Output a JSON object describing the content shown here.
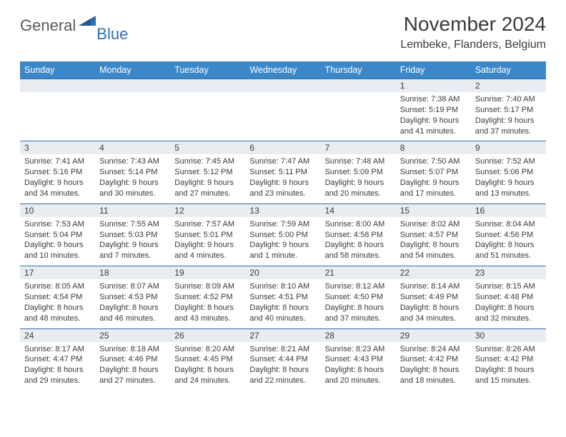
{
  "brand": {
    "part1": "General",
    "part2": "Blue"
  },
  "title": "November 2024",
  "location": "Lembeke, Flanders, Belgium",
  "colors": {
    "header_bg": "#3b87c8",
    "header_text": "#ffffff",
    "daynum_bg": "#e9edf1",
    "rule": "#2f6fb0",
    "body_text": "#3a3a3a",
    "logo_gray": "#5a5a5a",
    "logo_blue": "#2f6fb0"
  },
  "typography": {
    "title_fontsize": 28,
    "location_fontsize": 16,
    "dayheader_fontsize": 12.5,
    "daynum_fontsize": 12,
    "cell_fontsize": 11
  },
  "day_headers": [
    "Sunday",
    "Monday",
    "Tuesday",
    "Wednesday",
    "Thursday",
    "Friday",
    "Saturday"
  ],
  "weeks": [
    [
      null,
      null,
      null,
      null,
      null,
      {
        "n": "1",
        "sr": "7:38 AM",
        "ss": "5:19 PM",
        "dl": "9 hours and 41 minutes."
      },
      {
        "n": "2",
        "sr": "7:40 AM",
        "ss": "5:17 PM",
        "dl": "9 hours and 37 minutes."
      }
    ],
    [
      {
        "n": "3",
        "sr": "7:41 AM",
        "ss": "5:16 PM",
        "dl": "9 hours and 34 minutes."
      },
      {
        "n": "4",
        "sr": "7:43 AM",
        "ss": "5:14 PM",
        "dl": "9 hours and 30 minutes."
      },
      {
        "n": "5",
        "sr": "7:45 AM",
        "ss": "5:12 PM",
        "dl": "9 hours and 27 minutes."
      },
      {
        "n": "6",
        "sr": "7:47 AM",
        "ss": "5:11 PM",
        "dl": "9 hours and 23 minutes."
      },
      {
        "n": "7",
        "sr": "7:48 AM",
        "ss": "5:09 PM",
        "dl": "9 hours and 20 minutes."
      },
      {
        "n": "8",
        "sr": "7:50 AM",
        "ss": "5:07 PM",
        "dl": "9 hours and 17 minutes."
      },
      {
        "n": "9",
        "sr": "7:52 AM",
        "ss": "5:06 PM",
        "dl": "9 hours and 13 minutes."
      }
    ],
    [
      {
        "n": "10",
        "sr": "7:53 AM",
        "ss": "5:04 PM",
        "dl": "9 hours and 10 minutes."
      },
      {
        "n": "11",
        "sr": "7:55 AM",
        "ss": "5:03 PM",
        "dl": "9 hours and 7 minutes."
      },
      {
        "n": "12",
        "sr": "7:57 AM",
        "ss": "5:01 PM",
        "dl": "9 hours and 4 minutes."
      },
      {
        "n": "13",
        "sr": "7:59 AM",
        "ss": "5:00 PM",
        "dl": "9 hours and 1 minute."
      },
      {
        "n": "14",
        "sr": "8:00 AM",
        "ss": "4:58 PM",
        "dl": "8 hours and 58 minutes."
      },
      {
        "n": "15",
        "sr": "8:02 AM",
        "ss": "4:57 PM",
        "dl": "8 hours and 54 minutes."
      },
      {
        "n": "16",
        "sr": "8:04 AM",
        "ss": "4:56 PM",
        "dl": "8 hours and 51 minutes."
      }
    ],
    [
      {
        "n": "17",
        "sr": "8:05 AM",
        "ss": "4:54 PM",
        "dl": "8 hours and 48 minutes."
      },
      {
        "n": "18",
        "sr": "8:07 AM",
        "ss": "4:53 PM",
        "dl": "8 hours and 46 minutes."
      },
      {
        "n": "19",
        "sr": "8:09 AM",
        "ss": "4:52 PM",
        "dl": "8 hours and 43 minutes."
      },
      {
        "n": "20",
        "sr": "8:10 AM",
        "ss": "4:51 PM",
        "dl": "8 hours and 40 minutes."
      },
      {
        "n": "21",
        "sr": "8:12 AM",
        "ss": "4:50 PM",
        "dl": "8 hours and 37 minutes."
      },
      {
        "n": "22",
        "sr": "8:14 AM",
        "ss": "4:49 PM",
        "dl": "8 hours and 34 minutes."
      },
      {
        "n": "23",
        "sr": "8:15 AM",
        "ss": "4:48 PM",
        "dl": "8 hours and 32 minutes."
      }
    ],
    [
      {
        "n": "24",
        "sr": "8:17 AM",
        "ss": "4:47 PM",
        "dl": "8 hours and 29 minutes."
      },
      {
        "n": "25",
        "sr": "8:18 AM",
        "ss": "4:46 PM",
        "dl": "8 hours and 27 minutes."
      },
      {
        "n": "26",
        "sr": "8:20 AM",
        "ss": "4:45 PM",
        "dl": "8 hours and 24 minutes."
      },
      {
        "n": "27",
        "sr": "8:21 AM",
        "ss": "4:44 PM",
        "dl": "8 hours and 22 minutes."
      },
      {
        "n": "28",
        "sr": "8:23 AM",
        "ss": "4:43 PM",
        "dl": "8 hours and 20 minutes."
      },
      {
        "n": "29",
        "sr": "8:24 AM",
        "ss": "4:42 PM",
        "dl": "8 hours and 18 minutes."
      },
      {
        "n": "30",
        "sr": "8:26 AM",
        "ss": "4:42 PM",
        "dl": "8 hours and 15 minutes."
      }
    ]
  ],
  "labels": {
    "sunrise": "Sunrise: ",
    "sunset": "Sunset: ",
    "daylight": "Daylight: "
  }
}
